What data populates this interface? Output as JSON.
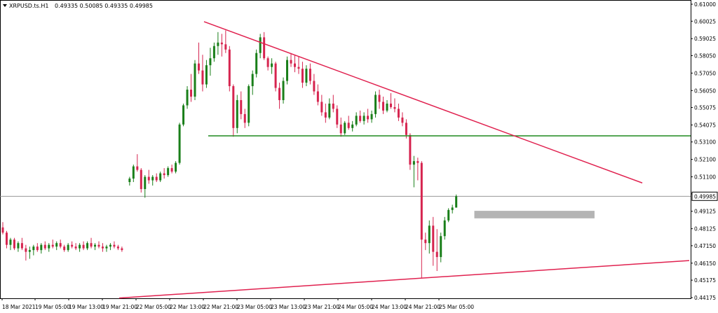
{
  "header": {
    "symbol": "XRPUSD.ts.H1",
    "ohlc": "0.49335 0.50085 0.49335 0.49985",
    "dropdown_icon": "triangle-down-icon"
  },
  "current_price_label": "0.49985",
  "colors": {
    "bull": "#1a7f1a",
    "bear": "#d6244f",
    "trendline": "#e0214f",
    "support_line": "#1f8a1f",
    "zone": "#b4b4b4",
    "axis": "#000000",
    "price_line": "#888888"
  },
  "chart_data": {
    "type": "candlestick",
    "ylim": [
      0.44175,
      0.61
    ],
    "y_ticks": [
      "0.61000",
      "0.60025",
      "0.59025",
      "0.58050",
      "0.57050",
      "0.56050",
      "0.55075",
      "0.54075",
      "0.53100",
      "0.52100",
      "0.51100",
      "0.50125",
      "0.49125",
      "0.48125",
      "0.47150",
      "0.46150",
      "0.45175",
      "0.44175"
    ],
    "x_ticks": [
      "18 Mar 2021",
      "19 Mar 05:00",
      "19 Mar 13:00",
      "19 Mar 21:00",
      "22 Mar 05:00",
      "22 Mar 13:00",
      "22 Mar 21:00",
      "23 Mar 05:00",
      "23 Mar 13:00",
      "23 Mar 21:00",
      "24 Mar 05:00",
      "24 Mar 13:00",
      "24 Mar 21:00",
      "25 Mar 05:00"
    ],
    "current_price": 0.49985,
    "horizontal_level": 0.5345,
    "resistance_trendline": {
      "from": [
        55,
        0.6
      ],
      "to": [
        180,
        0.5075
      ]
    },
    "support_trendline": {
      "from": [
        0,
        0.4415
      ],
      "to": [
        200,
        0.463
      ]
    },
    "zone": {
      "x_from": 126,
      "x_to": 154,
      "y_low": 0.4872,
      "y_high": 0.4915
    },
    "candles": [
      [
        0,
        0.482,
        0.485,
        0.478,
        0.479
      ],
      [
        1,
        0.479,
        0.48,
        0.47,
        0.472
      ],
      [
        2,
        0.472,
        0.476,
        0.469,
        0.475
      ],
      [
        3,
        0.475,
        0.476,
        0.469,
        0.47
      ],
      [
        4,
        0.47,
        0.474,
        0.468,
        0.473
      ],
      [
        5,
        0.473,
        0.476,
        0.469,
        0.47
      ],
      [
        6,
        0.47,
        0.472,
        0.463,
        0.468
      ],
      [
        7,
        0.468,
        0.471,
        0.464,
        0.469
      ],
      [
        8,
        0.469,
        0.472,
        0.466,
        0.471
      ],
      [
        9,
        0.471,
        0.473,
        0.468,
        0.469
      ],
      [
        10,
        0.469,
        0.473,
        0.467,
        0.472
      ],
      [
        11,
        0.472,
        0.474,
        0.469,
        0.47
      ],
      [
        12,
        0.47,
        0.473,
        0.468,
        0.472
      ],
      [
        13,
        0.472,
        0.475,
        0.47,
        0.471
      ],
      [
        14,
        0.471,
        0.474,
        0.469,
        0.473
      ],
      [
        15,
        0.473,
        0.475,
        0.47,
        0.471
      ],
      [
        16,
        0.471,
        0.472,
        0.468,
        0.469
      ],
      [
        17,
        0.469,
        0.473,
        0.468,
        0.472
      ],
      [
        18,
        0.472,
        0.474,
        0.47,
        0.471
      ],
      [
        19,
        0.471,
        0.473,
        0.469,
        0.47
      ],
      [
        20,
        0.47,
        0.473,
        0.468,
        0.472
      ],
      [
        21,
        0.472,
        0.474,
        0.469,
        0.47
      ],
      [
        22,
        0.47,
        0.474,
        0.469,
        0.473
      ],
      [
        23,
        0.473,
        0.476,
        0.47,
        0.471
      ],
      [
        24,
        0.471,
        0.473,
        0.469,
        0.472
      ],
      [
        25,
        0.472,
        0.474,
        0.47,
        0.471
      ],
      [
        26,
        0.471,
        0.473,
        0.468,
        0.47
      ],
      [
        27,
        0.47,
        0.472,
        0.468,
        0.471
      ],
      [
        28,
        0.471,
        0.473,
        0.469,
        0.472
      ],
      [
        29,
        0.472,
        0.474,
        0.47,
        0.471
      ],
      [
        30,
        0.471,
        0.472,
        0.469,
        0.47
      ],
      [
        31,
        0.47,
        0.471,
        0.468,
        0.469
      ],
      [
        33,
        0.508,
        0.511,
        0.506,
        0.51
      ],
      [
        34,
        0.51,
        0.518,
        0.508,
        0.517
      ],
      [
        35,
        0.517,
        0.524,
        0.514,
        0.515
      ],
      [
        36,
        0.515,
        0.516,
        0.502,
        0.504
      ],
      [
        37,
        0.504,
        0.512,
        0.499,
        0.511
      ],
      [
        38,
        0.511,
        0.515,
        0.507,
        0.509
      ],
      [
        39,
        0.509,
        0.512,
        0.506,
        0.511
      ],
      [
        40,
        0.511,
        0.513,
        0.508,
        0.509
      ],
      [
        41,
        0.509,
        0.514,
        0.508,
        0.513
      ],
      [
        42,
        0.513,
        0.516,
        0.51,
        0.512
      ],
      [
        43,
        0.512,
        0.517,
        0.511,
        0.516
      ],
      [
        44,
        0.516,
        0.518,
        0.513,
        0.514
      ],
      [
        45,
        0.514,
        0.52,
        0.513,
        0.519
      ],
      [
        46,
        0.519,
        0.542,
        0.518,
        0.541
      ],
      [
        47,
        0.541,
        0.553,
        0.54,
        0.552
      ],
      [
        48,
        0.552,
        0.563,
        0.55,
        0.561
      ],
      [
        49,
        0.561,
        0.57,
        0.554,
        0.557
      ],
      [
        50,
        0.557,
        0.578,
        0.555,
        0.576
      ],
      [
        51,
        0.576,
        0.588,
        0.57,
        0.572
      ],
      [
        52,
        0.572,
        0.581,
        0.56,
        0.564
      ],
      [
        53,
        0.564,
        0.578,
        0.562,
        0.575
      ],
      [
        54,
        0.575,
        0.585,
        0.569,
        0.579
      ],
      [
        55,
        0.579,
        0.588,
        0.577,
        0.586
      ],
      [
        56,
        0.586,
        0.594,
        0.581,
        0.588
      ],
      [
        57,
        0.588,
        0.593,
        0.58,
        0.587
      ],
      [
        58,
        0.587,
        0.595,
        0.582,
        0.584
      ],
      [
        59,
        0.584,
        0.586,
        0.56,
        0.563
      ],
      [
        60,
        0.563,
        0.564,
        0.534,
        0.539
      ],
      [
        61,
        0.539,
        0.558,
        0.536,
        0.555
      ],
      [
        62,
        0.555,
        0.56,
        0.544,
        0.547
      ],
      [
        63,
        0.547,
        0.55,
        0.539,
        0.542
      ],
      [
        64,
        0.542,
        0.564,
        0.54,
        0.563
      ],
      [
        65,
        0.563,
        0.572,
        0.558,
        0.57
      ],
      [
        66,
        0.57,
        0.584,
        0.568,
        0.582
      ],
      [
        67,
        0.582,
        0.593,
        0.579,
        0.591
      ],
      [
        68,
        0.591,
        0.594,
        0.578,
        0.579
      ],
      [
        69,
        0.579,
        0.58,
        0.572,
        0.574
      ],
      [
        70,
        0.574,
        0.579,
        0.57,
        0.576
      ],
      [
        71,
        0.576,
        0.577,
        0.56,
        0.562
      ],
      [
        72,
        0.562,
        0.565,
        0.55,
        0.555
      ],
      [
        73,
        0.555,
        0.568,
        0.553,
        0.566
      ],
      [
        74,
        0.566,
        0.58,
        0.564,
        0.578
      ],
      [
        75,
        0.578,
        0.582,
        0.574,
        0.576
      ],
      [
        76,
        0.576,
        0.581,
        0.571,
        0.574
      ],
      [
        77,
        0.574,
        0.58,
        0.57,
        0.573
      ],
      [
        78,
        0.573,
        0.577,
        0.562,
        0.565
      ],
      [
        79,
        0.565,
        0.575,
        0.563,
        0.573
      ],
      [
        80,
        0.573,
        0.576,
        0.564,
        0.566
      ],
      [
        81,
        0.566,
        0.57,
        0.558,
        0.56
      ],
      [
        82,
        0.56,
        0.564,
        0.552,
        0.554
      ],
      [
        83,
        0.554,
        0.558,
        0.546,
        0.548
      ],
      [
        84,
        0.548,
        0.553,
        0.542,
        0.545
      ],
      [
        85,
        0.545,
        0.556,
        0.544,
        0.553
      ],
      [
        86,
        0.553,
        0.558,
        0.548,
        0.55
      ],
      [
        87,
        0.55,
        0.552,
        0.539,
        0.541
      ],
      [
        88,
        0.541,
        0.545,
        0.534,
        0.536
      ],
      [
        89,
        0.536,
        0.543,
        0.535,
        0.542
      ],
      [
        90,
        0.542,
        0.546,
        0.538,
        0.539
      ],
      [
        91,
        0.539,
        0.543,
        0.537,
        0.541
      ],
      [
        92,
        0.541,
        0.548,
        0.54,
        0.546
      ],
      [
        93,
        0.546,
        0.549,
        0.542,
        0.543
      ],
      [
        94,
        0.543,
        0.548,
        0.541,
        0.546
      ],
      [
        95,
        0.546,
        0.55,
        0.542,
        0.544
      ],
      [
        96,
        0.544,
        0.549,
        0.542,
        0.547
      ],
      [
        97,
        0.547,
        0.56,
        0.545,
        0.558
      ],
      [
        98,
        0.558,
        0.561,
        0.55,
        0.554
      ],
      [
        99,
        0.554,
        0.557,
        0.547,
        0.549
      ],
      [
        100,
        0.549,
        0.555,
        0.548,
        0.553
      ],
      [
        101,
        0.553,
        0.559,
        0.55,
        0.551
      ],
      [
        102,
        0.551,
        0.556,
        0.548,
        0.55
      ],
      [
        103,
        0.55,
        0.553,
        0.543,
        0.545
      ],
      [
        104,
        0.545,
        0.548,
        0.54,
        0.542
      ],
      [
        105,
        0.542,
        0.544,
        0.533,
        0.535
      ],
      [
        106,
        0.535,
        0.536,
        0.515,
        0.518
      ],
      [
        107,
        0.518,
        0.523,
        0.505,
        0.52
      ],
      [
        108,
        0.52,
        0.522,
        0.509,
        0.519
      ],
      [
        109,
        0.519,
        0.52,
        0.453,
        0.475
      ],
      [
        110,
        0.475,
        0.479,
        0.469,
        0.473
      ],
      [
        111,
        0.473,
        0.486,
        0.467,
        0.483
      ],
      [
        112,
        0.483,
        0.488,
        0.46,
        0.468
      ],
      [
        113,
        0.468,
        0.481,
        0.457,
        0.465
      ],
      [
        114,
        0.465,
        0.479,
        0.462,
        0.477
      ],
      [
        115,
        0.477,
        0.488,
        0.475,
        0.486
      ],
      [
        116,
        0.486,
        0.493,
        0.485,
        0.492
      ],
      [
        117,
        0.492,
        0.495,
        0.49,
        0.4934
      ],
      [
        118,
        0.49335,
        0.50085,
        0.49335,
        0.49985
      ]
    ]
  }
}
